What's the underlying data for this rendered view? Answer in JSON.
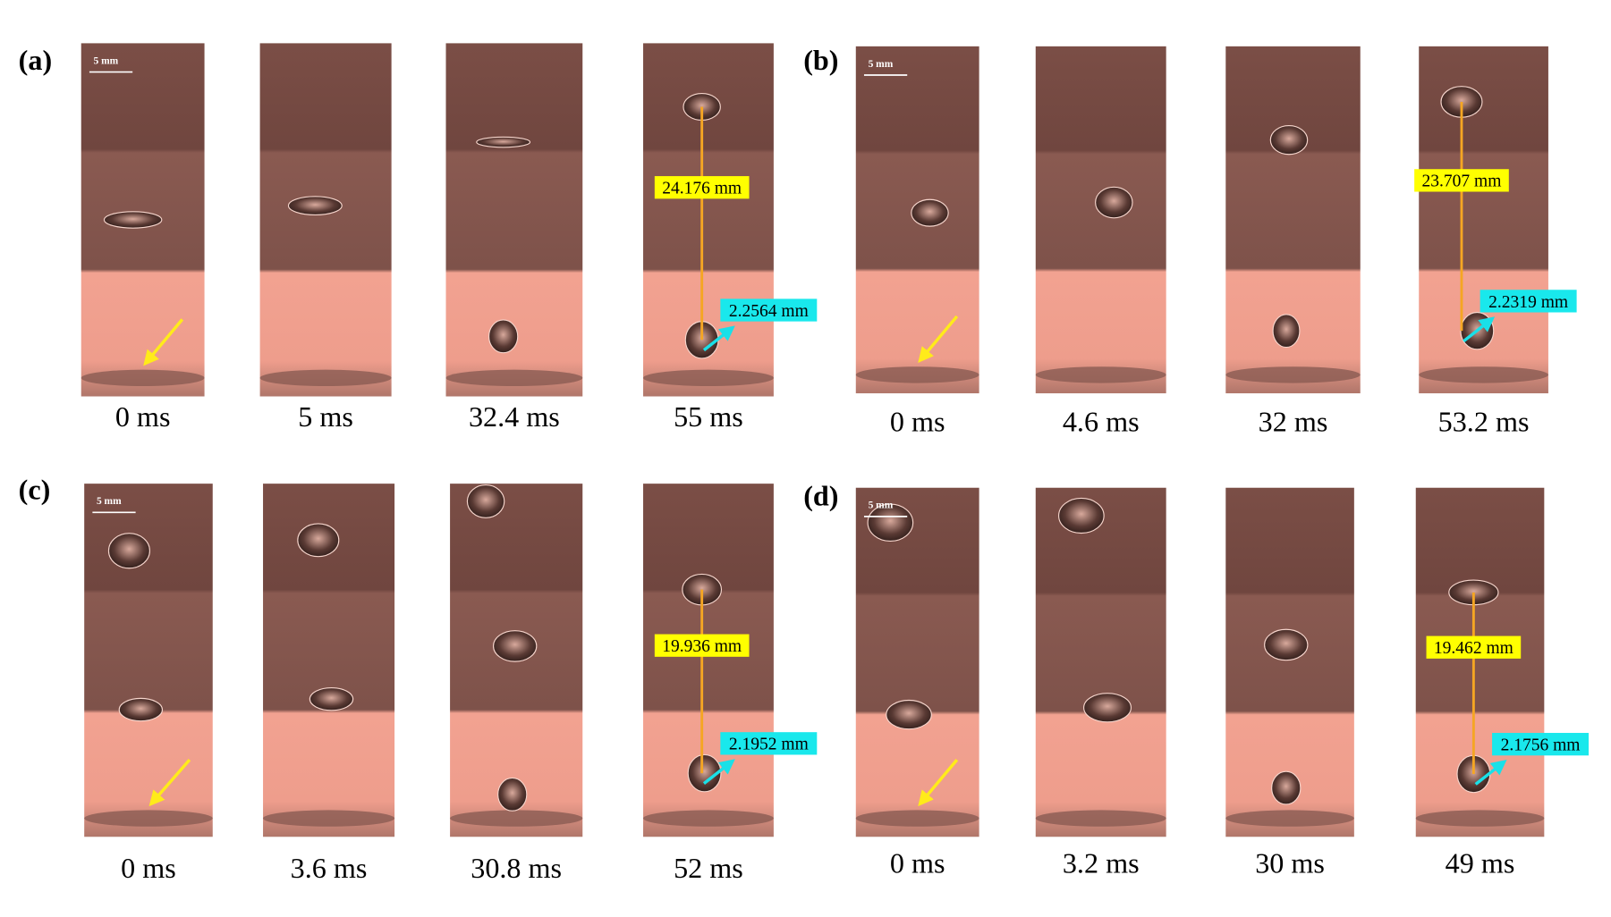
{
  "panels": [
    {
      "label": "(a)",
      "scale": "5 mm",
      "times": [
        "0 ms",
        "5 ms",
        "32.4 ms",
        "55 ms"
      ],
      "height": "24.176 mm",
      "diameter": "2.2564 mm"
    },
    {
      "label": "(b)",
      "scale": "5 mm",
      "times": [
        "0 ms",
        "4.6 ms",
        "32 ms",
        "53.2 ms"
      ],
      "height": "23.707 mm",
      "diameter": "2.2319 mm"
    },
    {
      "label": "(c)",
      "scale": "5 mm",
      "times": [
        "0 ms",
        "3.6 ms",
        "30.8 ms",
        "52 ms"
      ],
      "height": "19.936 mm",
      "diameter": "2.1952 mm"
    },
    {
      "label": "(d)",
      "scale": "5 mm",
      "times": [
        "0 ms",
        "3.2 ms",
        "30 ms",
        "49 ms"
      ],
      "height": "19.462 mm",
      "diameter": "2.1756 mm"
    }
  ]
}
